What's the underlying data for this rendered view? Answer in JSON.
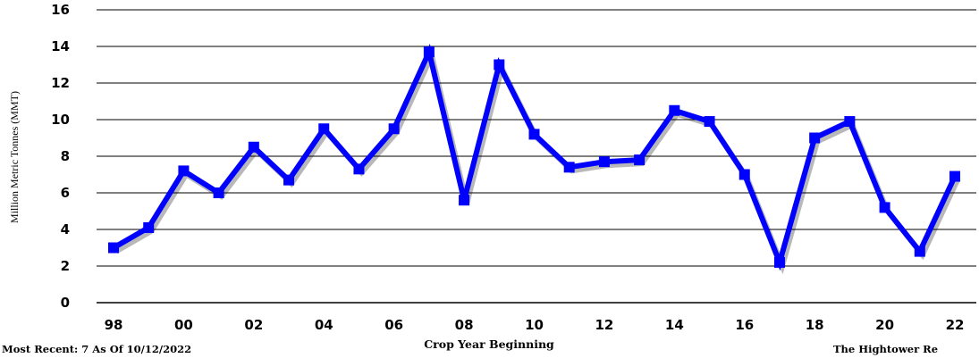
{
  "chart_data": {
    "type": "line",
    "title": "",
    "xlabel": "Crop Year Beginning",
    "ylabel": "Million Metric Tonnes (MMT)",
    "ylim": [
      0,
      16
    ],
    "y_ticks": [
      0,
      2,
      4,
      6,
      8,
      10,
      12,
      14,
      16
    ],
    "grid": "horizontal",
    "legend": "none",
    "x_tick_labels": [
      {
        "year": 1998,
        "label": "98"
      },
      {
        "year": 2000,
        "label": "00"
      },
      {
        "year": 2002,
        "label": "02"
      },
      {
        "year": 2004,
        "label": "04"
      },
      {
        "year": 2006,
        "label": "06"
      },
      {
        "year": 2008,
        "label": "08"
      },
      {
        "year": 2010,
        "label": "10"
      },
      {
        "year": 2012,
        "label": "12"
      },
      {
        "year": 2014,
        "label": "14"
      },
      {
        "year": 2016,
        "label": "16"
      },
      {
        "year": 2018,
        "label": "18"
      },
      {
        "year": 2020,
        "label": "20"
      },
      {
        "year": 2022,
        "label": "22"
      }
    ],
    "series": [
      {
        "color": "#0000ff",
        "points": [
          {
            "year": 1998,
            "value": 3.0
          },
          {
            "year": 1999,
            "value": 4.1
          },
          {
            "year": 2000,
            "value": 7.2
          },
          {
            "year": 2001,
            "value": 6.0
          },
          {
            "year": 2002,
            "value": 8.5
          },
          {
            "year": 2003,
            "value": 6.7
          },
          {
            "year": 2004,
            "value": 9.5
          },
          {
            "year": 2005,
            "value": 7.3
          },
          {
            "year": 2006,
            "value": 9.5
          },
          {
            "year": 2007,
            "value": 13.7
          },
          {
            "year": 2008,
            "value": 5.6
          },
          {
            "year": 2009,
            "value": 13.0
          },
          {
            "year": 2010,
            "value": 9.2
          },
          {
            "year": 2011,
            "value": 7.4
          },
          {
            "year": 2012,
            "value": 7.7
          },
          {
            "year": 2013,
            "value": 7.8
          },
          {
            "year": 2014,
            "value": 10.5
          },
          {
            "year": 2015,
            "value": 9.9
          },
          {
            "year": 2016,
            "value": 7.0
          },
          {
            "year": 2017,
            "value": 2.2
          },
          {
            "year": 2018,
            "value": 9.0
          },
          {
            "year": 2019,
            "value": 9.9
          },
          {
            "year": 2020,
            "value": 5.2
          },
          {
            "year": 2021,
            "value": 2.8
          },
          {
            "year": 2022,
            "value": 6.9
          }
        ]
      }
    ],
    "footer_left": "Most Recent: 7 As Of 10/12/2022",
    "footer_right": "The Hightower Re"
  }
}
